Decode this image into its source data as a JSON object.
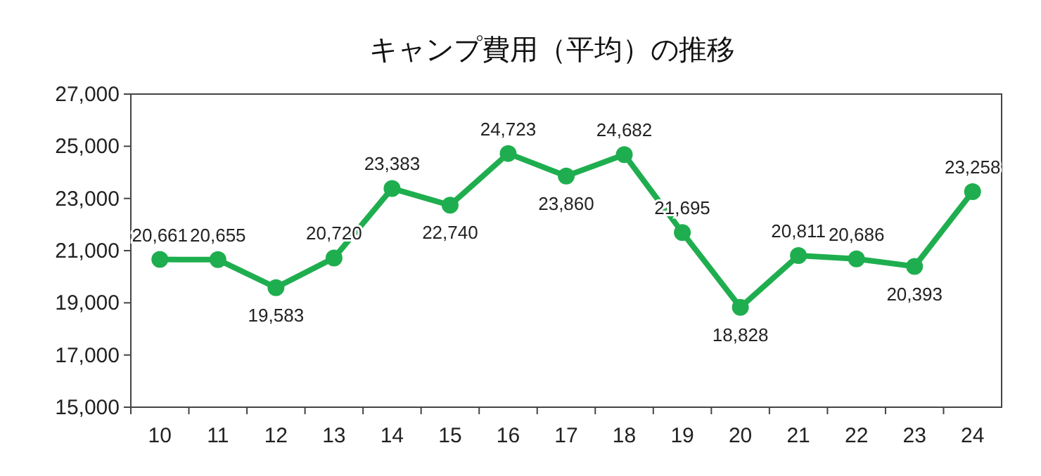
{
  "chart_data": {
    "type": "line",
    "title": "キャンプ費用（平均）の推移",
    "categories": [
      "10",
      "11",
      "12",
      "13",
      "14",
      "15",
      "16",
      "17",
      "18",
      "19",
      "20",
      "21",
      "22",
      "23",
      "24"
    ],
    "series": [
      {
        "color": "#1fae4f",
        "values": [
          20661,
          20655,
          19583,
          20720,
          23383,
          22740,
          24723,
          23860,
          24682,
          21695,
          18828,
          20811,
          20686,
          20393,
          23258
        ],
        "value_labels": [
          "20,661",
          "20,655",
          "19,583",
          "20,720",
          "23,383",
          "22,740",
          "24,723",
          "23,860",
          "24,682",
          "21,695",
          "18,828",
          "20,811",
          "20,686",
          "20,393",
          "23,258"
        ]
      }
    ],
    "ylim": [
      15000,
      27000
    ],
    "yticks": [
      {
        "value": 15000,
        "label": "15,000"
      },
      {
        "value": 17000,
        "label": "17,000"
      },
      {
        "value": 19000,
        "label": "19,000"
      },
      {
        "value": 21000,
        "label": "21,000"
      },
      {
        "value": 23000,
        "label": "23,000"
      },
      {
        "value": 25000,
        "label": "25,000"
      },
      {
        "value": 27000,
        "label": "27,000"
      }
    ],
    "marker": "circle",
    "grid": false
  }
}
